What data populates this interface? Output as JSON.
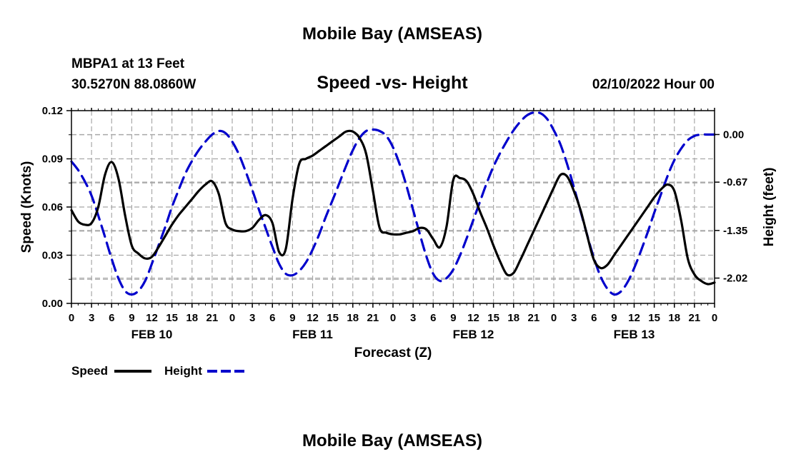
{
  "header": {
    "title": "Mobile Bay (AMSEAS)",
    "station": "MBPA1 at 13 Feet",
    "coords": "30.5270N  88.0860W",
    "subtitle": "Speed -vs- Height",
    "run": "02/10/2022 Hour 00"
  },
  "footer": {
    "title": "Mobile Bay (AMSEAS)"
  },
  "legend": {
    "speed": "Speed",
    "height": "Height"
  },
  "colors": {
    "speed": "#000000",
    "height": "#0000cc",
    "grid": "#a8a8a8"
  },
  "chart_data": {
    "type": "line",
    "xlabel": "Forecast (Z)",
    "ylabel": "Speed (Knots)",
    "y2label": "Height (feet)",
    "x_range_hours": [
      0,
      96
    ],
    "ylim": [
      0,
      0.12
    ],
    "y2lim": [
      -2.376,
      0.336
    ],
    "grid": true,
    "legend_position": "bottom-left",
    "x_tick_labels": [
      "0",
      "3",
      "6",
      "9",
      "12",
      "15",
      "18",
      "21",
      "0",
      "3",
      "6",
      "9",
      "12",
      "15",
      "18",
      "21",
      "0",
      "3",
      "6",
      "9",
      "12",
      "15",
      "18",
      "21",
      "0",
      "3",
      "6",
      "9",
      "12",
      "15",
      "18",
      "21",
      "0"
    ],
    "day_labels": [
      "FEB 10",
      "FEB 11",
      "FEB 12",
      "FEB 13"
    ],
    "day_label_hours": [
      12,
      36,
      60,
      84
    ],
    "y_tick_labels": [
      "0.00",
      "0.03",
      "0.06",
      "0.09",
      "0.12"
    ],
    "y_tick_values": [
      0,
      0.03,
      0.06,
      0.09,
      0.12
    ],
    "y2_tick_labels": [
      "0.00",
      "-0.67",
      "-1.35",
      "-2.02"
    ],
    "y2_tick_values": [
      0,
      -0.67,
      -1.35,
      -2.02
    ],
    "series": [
      {
        "name": "Speed",
        "axis": "left",
        "style": "solid",
        "x": [
          0,
          1,
          2,
          3,
          4,
          5,
          6,
          7,
          8,
          9,
          10,
          11,
          12,
          13,
          14,
          15,
          16,
          17,
          18,
          19,
          20,
          21,
          22,
          23,
          24,
          25,
          26,
          27,
          28,
          29,
          30,
          31,
          32,
          33,
          34,
          35,
          36,
          37,
          38,
          39,
          40,
          41,
          42,
          43,
          44,
          45,
          46,
          47,
          48,
          49,
          50,
          51,
          52,
          53,
          54,
          55,
          56,
          57,
          58,
          59,
          60,
          61,
          62,
          63,
          64,
          65,
          66,
          67,
          68,
          69,
          70,
          71,
          72,
          73,
          74,
          75,
          76,
          77,
          78,
          79,
          80,
          81,
          82,
          83,
          84,
          85,
          86,
          87,
          88,
          89,
          90,
          91,
          92,
          93,
          94,
          95,
          96
        ],
        "y": [
          0.058,
          0.051,
          0.049,
          0.05,
          0.06,
          0.08,
          0.088,
          0.078,
          0.055,
          0.036,
          0.031,
          0.028,
          0.029,
          0.035,
          0.042,
          0.049,
          0.055,
          0.06,
          0.065,
          0.07,
          0.074,
          0.076,
          0.068,
          0.05,
          0.046,
          0.045,
          0.045,
          0.047,
          0.052,
          0.055,
          0.05,
          0.032,
          0.034,
          0.065,
          0.087,
          0.09,
          0.092,
          0.095,
          0.098,
          0.101,
          0.104,
          0.107,
          0.107,
          0.103,
          0.093,
          0.07,
          0.047,
          0.044,
          0.043,
          0.043,
          0.044,
          0.045,
          0.047,
          0.046,
          0.04,
          0.035,
          0.048,
          0.077,
          0.078,
          0.076,
          0.068,
          0.057,
          0.047,
          0.036,
          0.026,
          0.018,
          0.019,
          0.027,
          0.036,
          0.045,
          0.054,
          0.063,
          0.072,
          0.08,
          0.079,
          0.07,
          0.058,
          0.042,
          0.027,
          0.022,
          0.024,
          0.03,
          0.036,
          0.042,
          0.048,
          0.054,
          0.06,
          0.066,
          0.071,
          0.074,
          0.07,
          0.052,
          0.028,
          0.018,
          0.014,
          0.012,
          0.013
        ]
      },
      {
        "name": "Height",
        "axis": "right",
        "style": "dashed",
        "x": [
          0,
          1,
          2,
          3,
          4,
          5,
          6,
          7,
          8,
          9,
          10,
          11,
          12,
          13,
          14,
          15,
          16,
          17,
          18,
          19,
          20,
          21,
          22,
          23,
          24,
          25,
          26,
          27,
          28,
          29,
          30,
          31,
          32,
          33,
          34,
          35,
          36,
          37,
          38,
          39,
          40,
          41,
          42,
          43,
          44,
          45,
          46,
          47,
          48,
          49,
          50,
          51,
          52,
          53,
          54,
          55,
          56,
          57,
          58,
          59,
          60,
          61,
          62,
          63,
          64,
          65,
          66,
          67,
          68,
          69,
          70,
          71,
          72,
          73,
          74,
          75,
          76,
          77,
          78,
          79,
          80,
          81,
          82,
          83,
          84,
          85,
          86,
          87,
          88,
          89,
          90,
          91,
          92,
          93,
          94,
          95,
          96
        ],
        "y": [
          -0.38,
          -0.5,
          -0.66,
          -0.86,
          -1.14,
          -1.44,
          -1.75,
          -2.02,
          -2.2,
          -2.25,
          -2.2,
          -2.06,
          -1.82,
          -1.56,
          -1.3,
          -1.02,
          -0.78,
          -0.55,
          -0.37,
          -0.22,
          -0.1,
          0.0,
          0.05,
          0.02,
          -0.1,
          -0.28,
          -0.52,
          -0.78,
          -1.06,
          -1.32,
          -1.58,
          -1.82,
          -1.96,
          -1.98,
          -1.92,
          -1.8,
          -1.62,
          -1.4,
          -1.15,
          -0.92,
          -0.68,
          -0.44,
          -0.22,
          -0.05,
          0.05,
          0.07,
          0.05,
          -0.02,
          -0.18,
          -0.42,
          -0.72,
          -1.06,
          -1.4,
          -1.72,
          -1.96,
          -2.06,
          -2.02,
          -1.9,
          -1.7,
          -1.46,
          -1.2,
          -0.94,
          -0.68,
          -0.45,
          -0.26,
          -0.09,
          0.06,
          0.18,
          0.27,
          0.31,
          0.3,
          0.22,
          0.06,
          -0.14,
          -0.42,
          -0.74,
          -1.08,
          -1.42,
          -1.74,
          -2.0,
          -2.17,
          -2.25,
          -2.21,
          -2.08,
          -1.88,
          -1.64,
          -1.38,
          -1.1,
          -0.84,
          -0.58,
          -0.36,
          -0.2,
          -0.08,
          -0.02,
          0.0,
          0.0,
          0.0
        ]
      }
    ]
  }
}
